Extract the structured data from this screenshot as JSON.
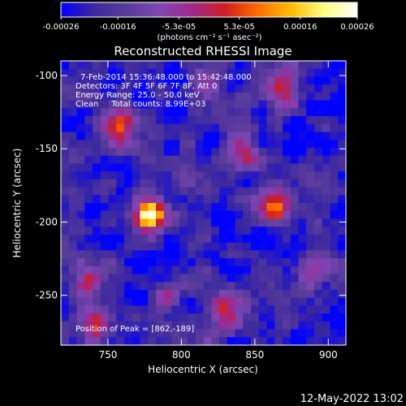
{
  "colorbar": {
    "ticks": [
      "-0.00026",
      "-0.00016",
      "-5.3e-05",
      "5.3e-05",
      "0.00016",
      "0.00026"
    ],
    "range": [
      -0.00026,
      0.00026
    ],
    "units_label": "(photons cm⁻² s⁻¹ asec⁻²)"
  },
  "header": {
    "title": "Reconstructed RHESSI Image"
  },
  "annotations": {
    "time_range": "7-Feb-2014 15:36:48.000 to 15:42:48.000",
    "detectors": "Detectors: 3F 4F 5F 6F 7F 8F, Att 0",
    "energy_range": "Energy Range: 25.0 - 50.0 keV",
    "clean_counts": "Clean     Total counts: 8.99E+03",
    "peak": "Position of Peak = [862,-189]"
  },
  "footer": {
    "date_stamp": "12-May-2022 13:02"
  },
  "palette": {
    "background": "#000000",
    "axis": "#ffffff",
    "stops": [
      "#0000ff",
      "#3c28a0",
      "#5a3c9a",
      "#7e46b4",
      "#a0288c",
      "#d21e1e",
      "#ff6e00",
      "#ffbe00",
      "#ffff82",
      "#ffffff"
    ]
  },
  "chart_data": {
    "type": "heatmap",
    "title": "Reconstructed RHESSI Image",
    "xlabel": "Heliocentric X (arcsec)",
    "ylabel": "Heliocentric Y (arcsec)",
    "xlim": [
      718,
      912
    ],
    "ylim": [
      -284,
      -90
    ],
    "x_ticks": [
      750,
      800,
      850,
      900
    ],
    "y_ticks": [
      -100,
      -150,
      -200,
      -250
    ],
    "grid": false,
    "peak": {
      "x": 862,
      "y": -189
    },
    "sources": [
      {
        "x": 862,
        "y": -189,
        "level": 1.0
      },
      {
        "x": 778,
        "y": -196,
        "level": 0.95
      },
      {
        "x": 843,
        "y": -152,
        "level": 0.62
      },
      {
        "x": 757,
        "y": -134,
        "level": 0.55
      },
      {
        "x": 893,
        "y": -232,
        "level": 0.5
      },
      {
        "x": 830,
        "y": -262,
        "level": 0.58
      },
      {
        "x": 735,
        "y": -238,
        "level": 0.45
      },
      {
        "x": 872,
        "y": -110,
        "level": 0.55
      },
      {
        "x": 803,
        "y": -170,
        "level": 0.35
      },
      {
        "x": 742,
        "y": -270,
        "level": 0.52
      },
      {
        "x": 788,
        "y": -250,
        "level": 0.48
      },
      {
        "x": 820,
        "y": -105,
        "level": 0.38
      }
    ]
  }
}
